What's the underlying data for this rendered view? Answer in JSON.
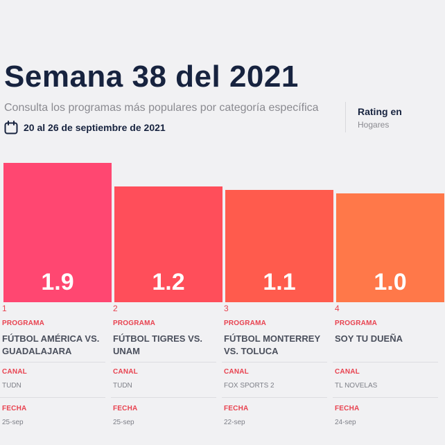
{
  "header": {
    "title": "Semana 38 del 2021",
    "subtitle": "Consulta los programas más populares por categoría específica",
    "date_range": "20 al 26 de septiembre de 2021",
    "rating_title": "Rating en",
    "rating_subtitle": "Hogares"
  },
  "labels": {
    "programa": "PROGRAMA",
    "canal": "CANAL",
    "fecha": "FECHA"
  },
  "colors": {
    "title": "#17233f",
    "accent": "#e8424f",
    "bars": [
      "#ff4771",
      "#ff4e5a",
      "#ff5b4d",
      "#ff7849"
    ]
  },
  "chart_data": {
    "type": "bar",
    "categories": [
      "FÚTBOL AMÉRICA VS. GUADALAJARA",
      "FÚTBOL TIGRES VS. UNAM",
      "FÚTBOL MONTERREY VS. TOLUCA",
      "SOY TU DUEÑA"
    ],
    "values": [
      1.9,
      1.2,
      1.1,
      1.0
    ],
    "value_labels": [
      "1.9",
      "1.2",
      "1.1",
      "1.0"
    ],
    "ylabel": "Rating en Hogares"
  },
  "items": [
    {
      "rank": "1",
      "program": "FÚTBOL AMÉRICA VS. GUADALAJARA",
      "channel": "TUDN",
      "date": "25-sep"
    },
    {
      "rank": "2",
      "program": "FÚTBOL TIGRES VS. UNAM",
      "channel": "TUDN",
      "date": "25-sep"
    },
    {
      "rank": "3",
      "program": "FÚTBOL MONTERREY VS. TOLUCA",
      "channel": "FOX SPORTS 2",
      "date": "22-sep"
    },
    {
      "rank": "4",
      "program": "SOY TU DUEÑA",
      "channel": "TL NOVELAS",
      "date": "24-sep"
    }
  ]
}
